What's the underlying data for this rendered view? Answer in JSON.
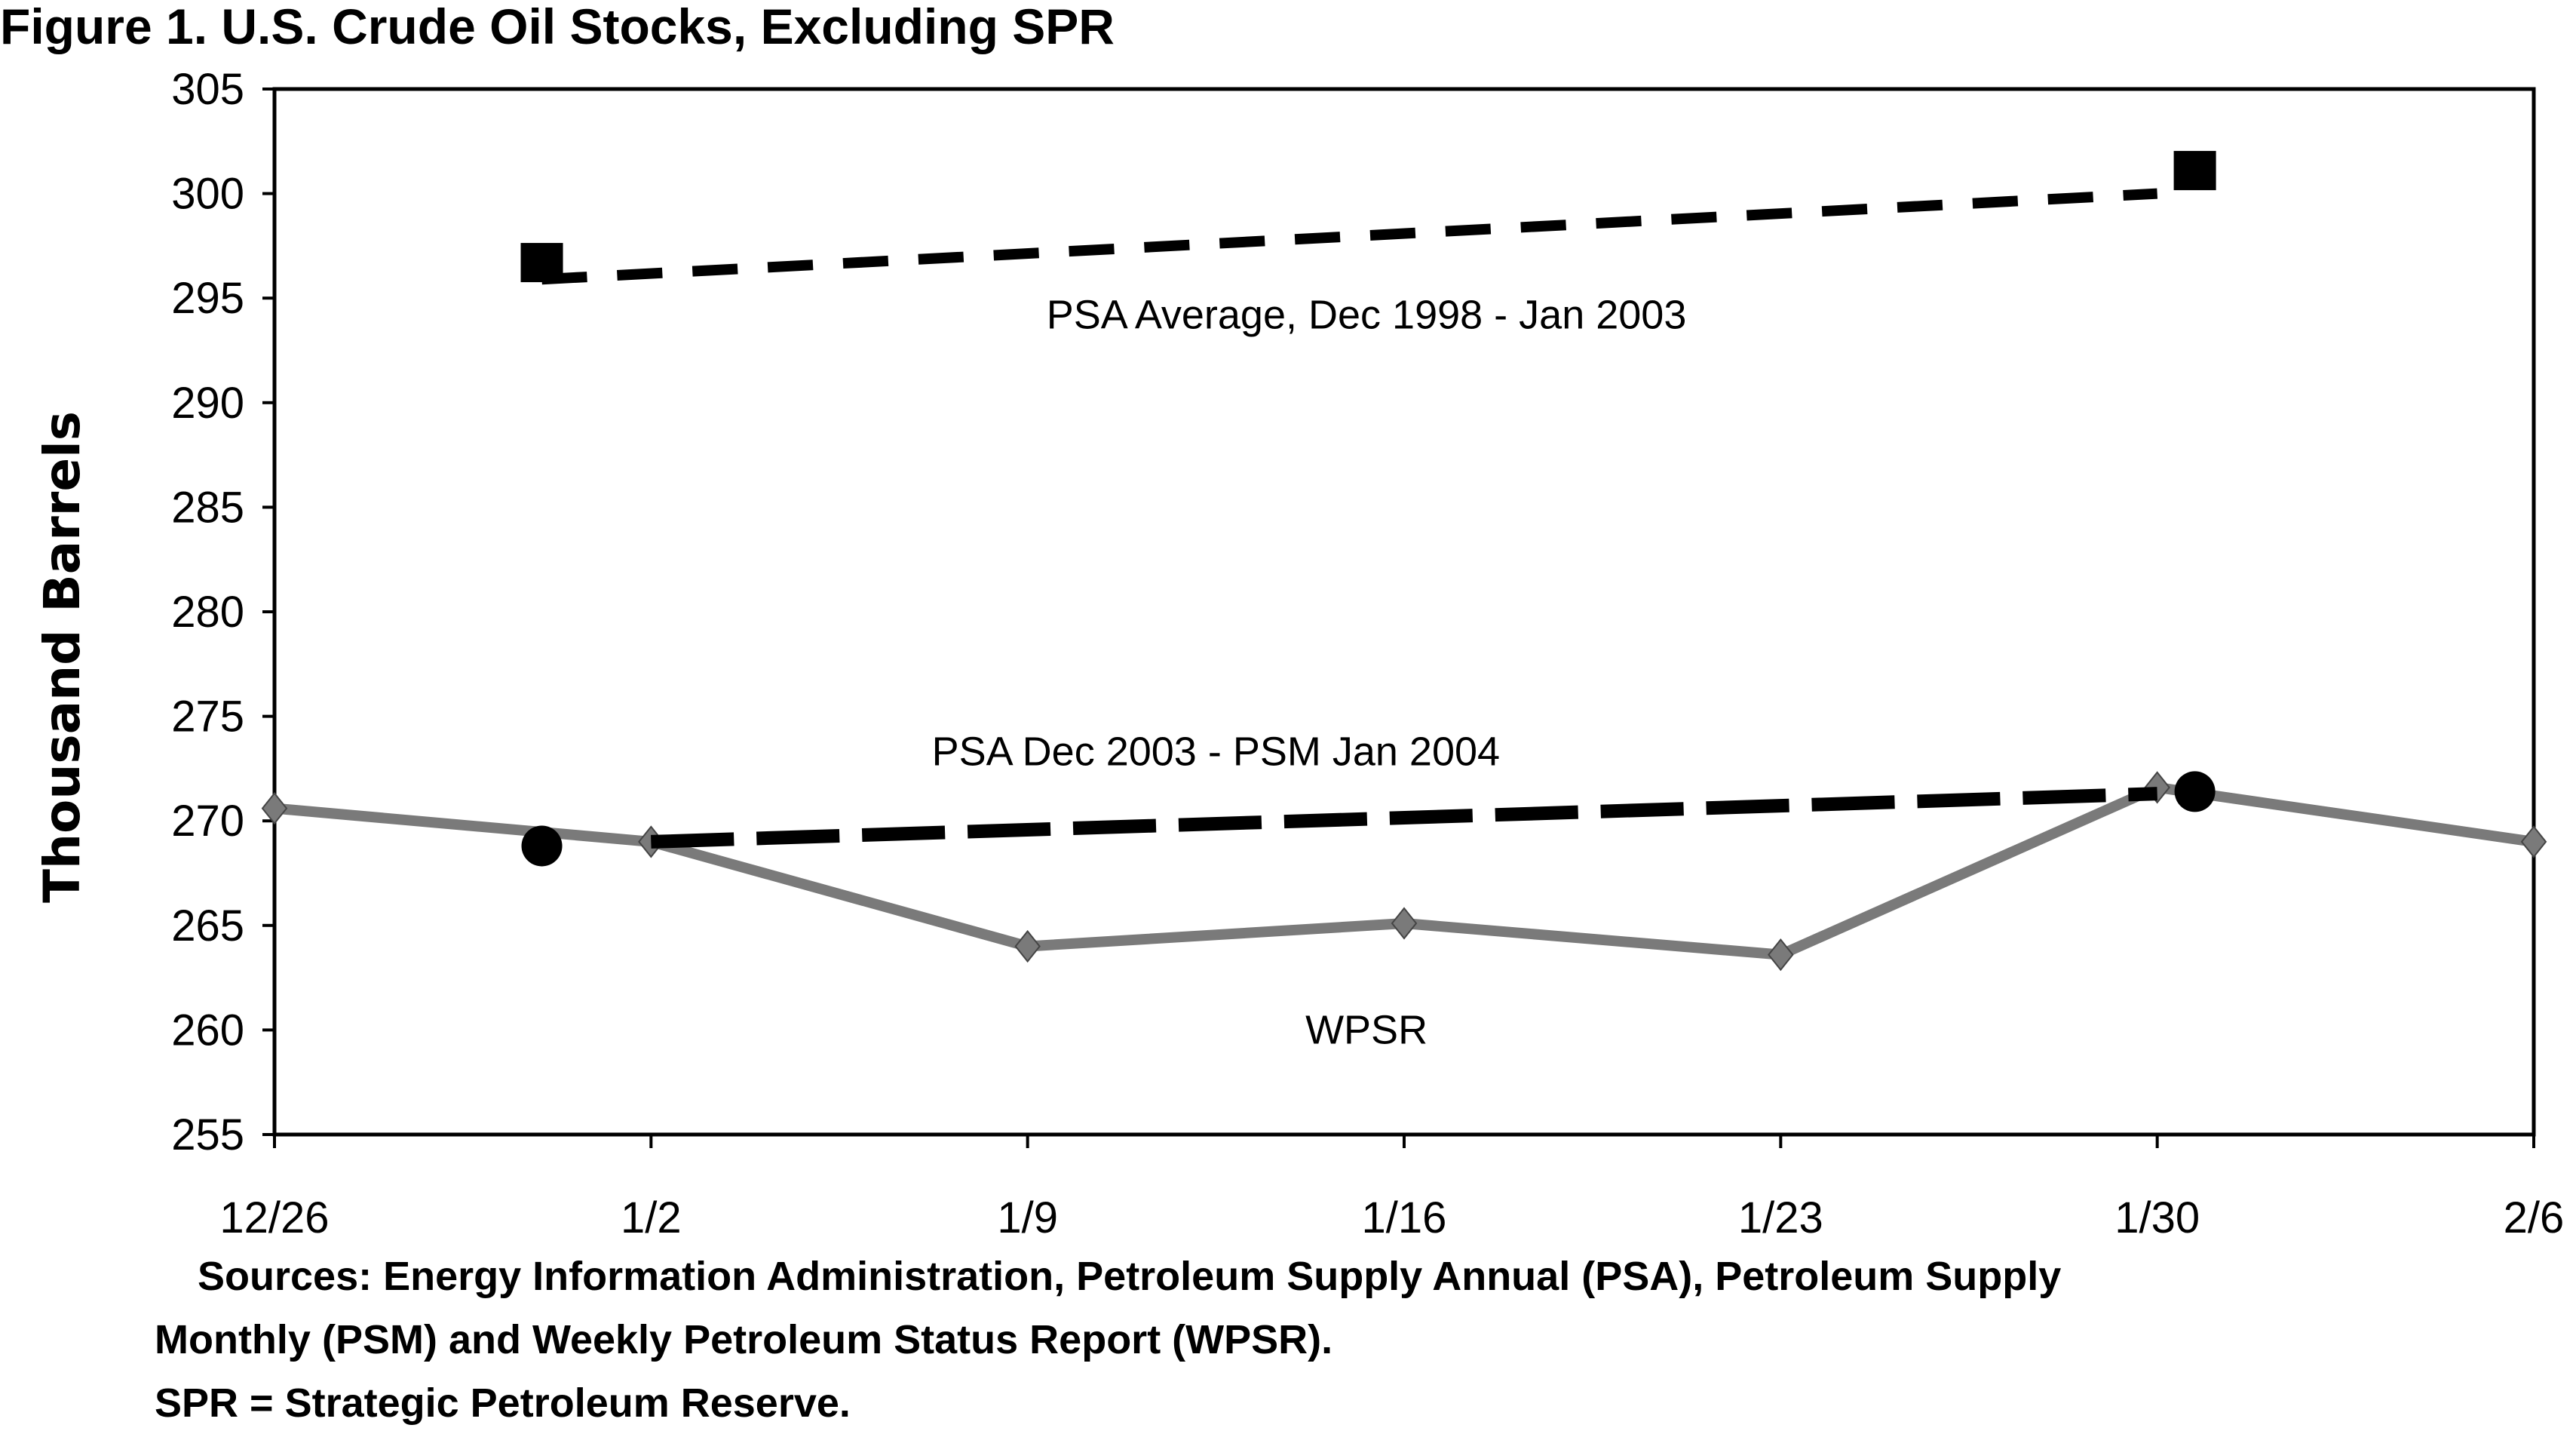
{
  "chart_data": {
    "type": "line",
    "title": "Figure 1.  U.S. Crude Oil Stocks, Excluding SPR",
    "xlabel": "",
    "ylabel": "Thousand Barrels",
    "ylim": [
      255,
      305
    ],
    "yticks": [
      255,
      260,
      265,
      270,
      275,
      280,
      285,
      290,
      295,
      300,
      305
    ],
    "ytick_labels": [
      "255",
      "260",
      "265",
      "270",
      "275",
      "280",
      "285",
      "290",
      "295",
      "300",
      "305"
    ],
    "categories": [
      "12/26",
      "1/2",
      "1/9",
      "1/16",
      "1/23",
      "1/30",
      "2/6"
    ],
    "grid": false,
    "series": [
      {
        "name": "WPSR",
        "style": "solid",
        "marker": "diamond",
        "color": "#7a7a7a",
        "x": [
          0,
          1,
          2,
          3,
          4,
          5,
          6
        ],
        "values": [
          270.6,
          269.0,
          264.0,
          265.1,
          263.6,
          271.6,
          269.0
        ]
      },
      {
        "name": "PSA Dec 2003 - PSM Jan 2004",
        "style": "dashed",
        "marker": "circle",
        "color": "#000000",
        "markers": [
          {
            "x": 0.71,
            "value": 268.8
          },
          {
            "x": 5.1,
            "value": 271.4
          }
        ],
        "line": [
          {
            "x": 1.0,
            "value": 269.0
          },
          {
            "x": 5.0,
            "value": 271.3
          }
        ]
      },
      {
        "name": "PSA Average, Dec 1998 - Jan 2003",
        "style": "dashed",
        "marker": "square",
        "color": "#000000",
        "markers": [
          {
            "x": 0.71,
            "value": 296.7
          },
          {
            "x": 5.1,
            "value": 301.1
          }
        ],
        "line": [
          {
            "x": 0.71,
            "value": 295.9
          },
          {
            "x": 5.0,
            "value": 300.0
          }
        ]
      }
    ],
    "annotations": [
      {
        "text": "PSA Average, Dec 1998 - Jan 2003",
        "x": 2.9,
        "value": 294.2
      },
      {
        "text": "PSA Dec 2003 - PSM Jan 2004",
        "x": 2.5,
        "value": 273.3
      },
      {
        "text": "WPSR",
        "x": 2.9,
        "value": 260.0
      }
    ]
  },
  "footnotes": {
    "line1": "Sources: Energy Information Administration, Petroleum Supply Annual (PSA), Petroleum Supply",
    "line2": "Monthly (PSM) and Weekly Petroleum Status Report (WPSR).",
    "line3": "SPR = Strategic Petroleum Reserve."
  }
}
